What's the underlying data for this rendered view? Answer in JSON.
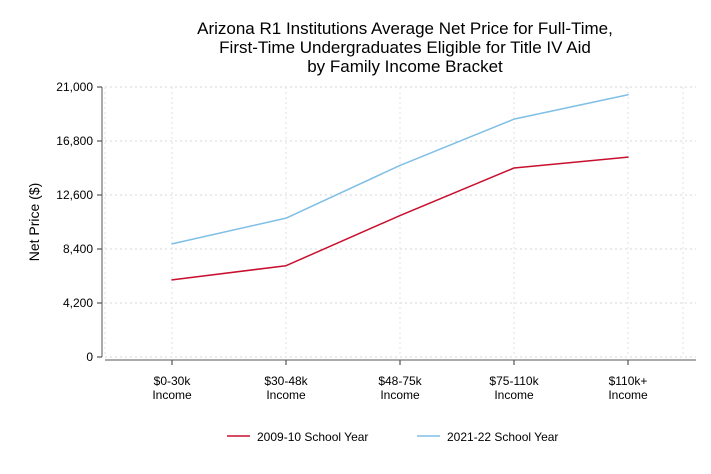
{
  "chart_data": {
    "type": "line",
    "title": [
      "Arizona R1 Institutions Average Net Price for Full-Time,",
      "First-Time Undergraduates Eligible for Title IV Aid",
      "by Family Income Bracket"
    ],
    "xlabel": "",
    "ylabel": "Net Price ($)",
    "categories": [
      [
        "$0-30k",
        "Income"
      ],
      [
        "$30-48k",
        "Income"
      ],
      [
        "$48-75k",
        "Income"
      ],
      [
        "$75-110k",
        "Income"
      ],
      [
        "$110k+",
        "Income"
      ]
    ],
    "ylim": [
      0,
      21000
    ],
    "yticks": [
      0,
      4200,
      8400,
      12600,
      16800,
      21000
    ],
    "ytick_labels": [
      "0",
      "4,200",
      "8,400",
      "12,600",
      "16,800",
      "21,000"
    ],
    "grid": true,
    "legend_position": "bottom",
    "series": [
      {
        "name": "2009-10 School Year",
        "color": "#c8102e",
        "values": [
          6000,
          7100,
          11000,
          14700,
          15550
        ]
      },
      {
        "name": "2021-22 School Year",
        "color": "#7fbfe6",
        "values": [
          8800,
          10800,
          14900,
          18500,
          20400
        ]
      }
    ]
  }
}
